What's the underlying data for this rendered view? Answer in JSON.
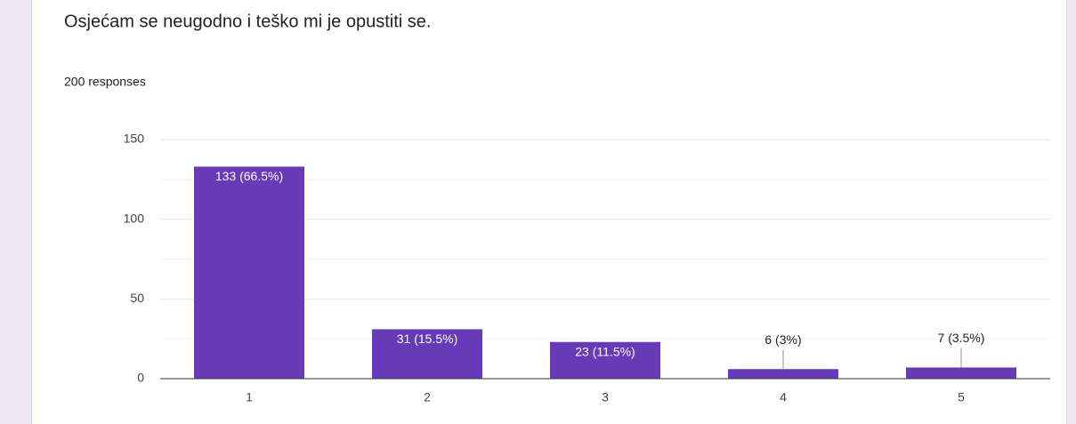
{
  "chart_data": {
    "type": "bar",
    "title": "Osjećam se neugodno i teško mi je opustiti se.",
    "subtitle": "200 responses",
    "categories": [
      "1",
      "2",
      "3",
      "4",
      "5"
    ],
    "values": [
      133,
      31,
      23,
      6,
      7
    ],
    "value_labels": [
      "133 (66.5%)",
      "31 (15.5%)",
      "23 (11.5%)",
      "6 (3%)",
      "7 (3.5%)"
    ],
    "color": "#673ab7",
    "ylim": [
      0,
      150
    ],
    "yticks": [
      0,
      50,
      100,
      150
    ],
    "minor_yticks": [
      25,
      75,
      125
    ],
    "grid": true
  }
}
